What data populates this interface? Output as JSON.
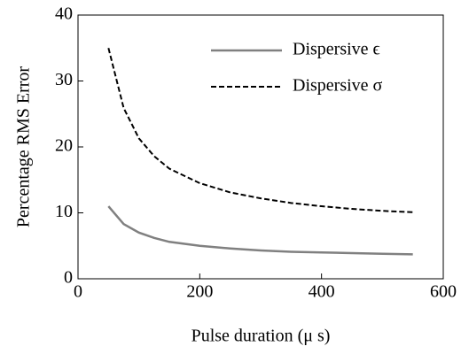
{
  "chart_data": {
    "type": "line",
    "xlabel": "Pulse duration (μ s)",
    "ylabel": "Percentage RMS Error",
    "x": [
      50,
      75,
      100,
      125,
      150,
      200,
      250,
      300,
      350,
      400,
      450,
      500,
      550
    ],
    "series": [
      {
        "name": "Dispersive ϵ",
        "color": "#808080",
        "dash": "solid",
        "values": [
          11.0,
          8.3,
          7.0,
          6.2,
          5.6,
          5.0,
          4.6,
          4.3,
          4.1,
          4.0,
          3.9,
          3.8,
          3.7
        ]
      },
      {
        "name": "Dispersive σ",
        "color": "#000000",
        "dash": "dashed",
        "values": [
          35.0,
          25.9,
          21.3,
          18.6,
          16.7,
          14.5,
          13.1,
          12.2,
          11.5,
          11.0,
          10.6,
          10.3,
          10.1
        ]
      }
    ],
    "xlim": [
      0,
      600
    ],
    "xticks": [
      0,
      200,
      400,
      600
    ],
    "ylim": [
      0,
      40
    ],
    "yticks": [
      0,
      10,
      20,
      30,
      40
    ],
    "grid": false,
    "legend": "upper right"
  }
}
